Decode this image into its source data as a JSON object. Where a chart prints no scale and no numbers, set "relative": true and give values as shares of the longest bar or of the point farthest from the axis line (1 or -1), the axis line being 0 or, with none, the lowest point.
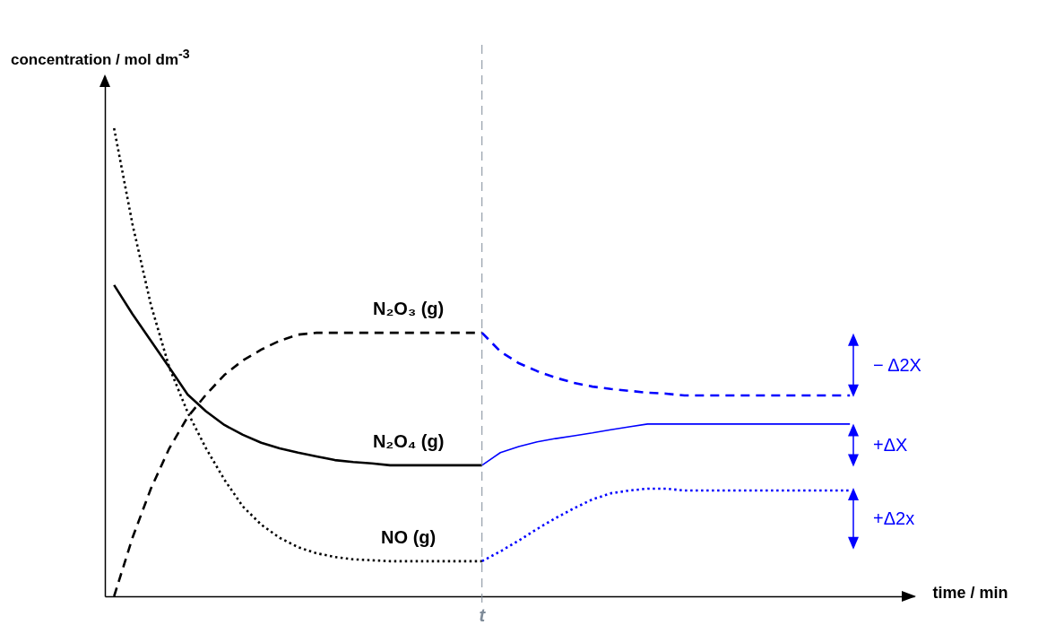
{
  "chart_data": {
    "type": "line",
    "relative": true,
    "ylabel": "concentration / mol dm$^{-3}$",
    "xlabel": "time / min",
    "categories": [
      null,
      null,
      null,
      null,
      null,
      null,
      null,
      null,
      null,
      null,
      null,
      null,
      null,
      null,
      null,
      null,
      null,
      null,
      null,
      null,
      null,
      null,
      null,
      null,
      null,
      null,
      null,
      null,
      null,
      null,
      null,
      null,
      null,
      null,
      null,
      null,
      null,
      null,
      null,
      null,
      null
    ],
    "series": [
      {
        "name": "N₂O₃ (g)",
        "color": "#000000",
        "line_style": "dashed",
        "values": [
          0,
          0.125,
          0.23,
          0.316,
          0.383,
          0.431,
          0.473,
          0.504,
          0.527,
          0.546,
          0.559,
          0.563,
          0.563,
          0.563,
          0.563,
          0.563,
          0.563,
          0.563,
          0.563,
          0.563,
          0.563,
          null,
          null,
          null,
          null,
          null,
          null,
          null,
          null,
          null,
          null,
          null,
          null,
          null,
          null,
          null,
          null,
          null,
          null,
          null,
          null
        ]
      },
      {
        "color": "#0000ff",
        "line_style": "dashed",
        "values": [
          null,
          null,
          null,
          null,
          null,
          null,
          null,
          null,
          null,
          null,
          null,
          null,
          null,
          null,
          null,
          null,
          null,
          null,
          null,
          null,
          0.563,
          0.523,
          0.498,
          0.481,
          0.467,
          0.456,
          0.448,
          0.443,
          0.439,
          0.435,
          0.433,
          0.429,
          0.429,
          0.429,
          0.429,
          0.429,
          0.429,
          0.429,
          0.429,
          0.429,
          0.429
        ]
      },
      {
        "name": "N₂O₄ (g)",
        "color": "#000000",
        "line_style": "solid",
        "values": [
          0.665,
          0.603,
          0.546,
          0.489,
          0.431,
          0.395,
          0.366,
          0.345,
          0.328,
          0.316,
          0.307,
          0.299,
          0.291,
          0.287,
          0.284,
          0.28,
          0.28,
          0.28,
          0.28,
          0.28,
          0.28,
          null,
          null,
          null,
          null,
          null,
          null,
          null,
          null,
          null,
          null,
          null,
          null,
          null,
          null,
          null,
          null,
          null,
          null,
          null,
          null
        ]
      },
      {
        "color": "#0000ff",
        "line_style": "solid",
        "values": [
          null,
          null,
          null,
          null,
          null,
          null,
          null,
          null,
          null,
          null,
          null,
          null,
          null,
          null,
          null,
          null,
          null,
          null,
          null,
          null,
          0.28,
          0.307,
          0.32,
          0.33,
          0.337,
          0.343,
          0.349,
          0.356,
          0.362,
          0.368,
          0.368,
          0.368,
          0.368,
          0.368,
          0.368,
          0.368,
          0.368,
          0.368,
          0.368,
          0.368,
          0.368
        ]
      },
      {
        "name": "NO (g)",
        "color": "#000000",
        "line_style": "dotted",
        "values": [
          1,
          0.795,
          0.623,
          0.489,
          0.393,
          0.316,
          0.249,
          0.192,
          0.153,
          0.125,
          0.105,
          0.092,
          0.084,
          0.079,
          0.077,
          0.075,
          0.075,
          0.075,
          0.075,
          0.075,
          0.075,
          null,
          null,
          null,
          null,
          null,
          null,
          null,
          null,
          null,
          null,
          null,
          null,
          null,
          null,
          null,
          null,
          null,
          null,
          null,
          null
        ]
      },
      {
        "color": "#0000ff",
        "line_style": "dotted",
        "values": [
          null,
          null,
          null,
          null,
          null,
          null,
          null,
          null,
          null,
          null,
          null,
          null,
          null,
          null,
          null,
          null,
          null,
          null,
          null,
          null,
          0.075,
          0.096,
          0.119,
          0.144,
          0.167,
          0.188,
          0.207,
          0.22,
          0.226,
          0.23,
          0.23,
          0.226,
          0.226,
          0.226,
          0.226,
          0.226,
          0.226,
          0.226,
          0.226,
          0.226,
          0.226
        ]
      }
    ],
    "annotations": [
      "− Δ2X",
      "+ΔX",
      "+Δ2x",
      "t"
    ]
  }
}
